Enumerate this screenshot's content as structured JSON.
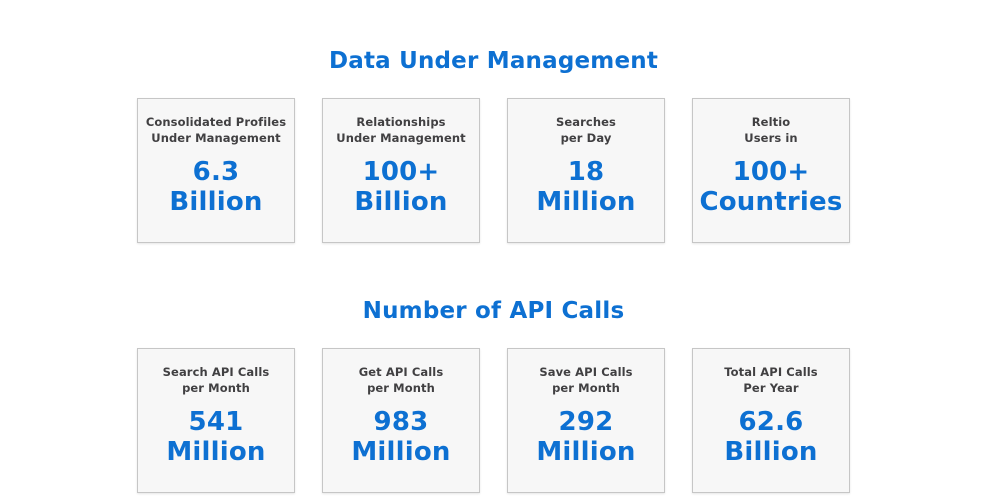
{
  "colors": {
    "accent_blue": "#0d70d2",
    "label_gray": "#414042",
    "card_background": "#f7f7f7",
    "card_border": "#c6c6c6",
    "page_background": "#ffffff"
  },
  "sections": [
    {
      "title": "Data Under Management",
      "cards": [
        {
          "label_line1": "Consolidated Profiles",
          "label_line2": "Under Management",
          "value_line1": "6.3",
          "value_line2": "Billion"
        },
        {
          "label_line1": "Relationships",
          "label_line2": "Under Management",
          "value_line1": "100+",
          "value_line2": "Billion"
        },
        {
          "label_line1": "Searches",
          "label_line2": "per Day",
          "value_line1": "18",
          "value_line2": "Million"
        },
        {
          "label_line1": "Reltio",
          "label_line2": "Users in",
          "value_line1": "100+",
          "value_line2": "Countries"
        }
      ]
    },
    {
      "title": "Number of API Calls",
      "cards": [
        {
          "label_line1": "Search API Calls",
          "label_line2": "per Month",
          "value_line1": "541",
          "value_line2": "Million"
        },
        {
          "label_line1": "Get API Calls",
          "label_line2": "per Month",
          "value_line1": "983",
          "value_line2": "Million"
        },
        {
          "label_line1": "Save API Calls",
          "label_line2": "per Month",
          "value_line1": "292",
          "value_line2": "Million"
        },
        {
          "label_line1": "Total API Calls",
          "label_line2": "Per Year",
          "value_line1": "62.6",
          "value_line2": "Billion"
        }
      ]
    }
  ],
  "chart_data": [
    {
      "type": "table",
      "title": "Data Under Management",
      "metrics": [
        {
          "label": "Consolidated Profiles Under Management",
          "value": 6.3,
          "unit": "Billion",
          "display": "6.3 Billion"
        },
        {
          "label": "Relationships Under Management",
          "value": "100+",
          "unit": "Billion",
          "display": "100+ Billion"
        },
        {
          "label": "Searches per Day",
          "value": 18,
          "unit": "Million",
          "display": "18 Million"
        },
        {
          "label": "Reltio Users in",
          "value": "100+",
          "unit": "Countries",
          "display": "100+ Countries"
        }
      ]
    },
    {
      "type": "table",
      "title": "Number of API Calls",
      "metrics": [
        {
          "label": "Search API Calls per Month",
          "value": 541,
          "unit": "Million",
          "display": "541 Million"
        },
        {
          "label": "Get API Calls per Month",
          "value": 983,
          "unit": "Million",
          "display": "983 Million"
        },
        {
          "label": "Save API Calls per Month",
          "value": 292,
          "unit": "Million",
          "display": "292 Million"
        },
        {
          "label": "Total API Calls Per Year",
          "value": 62.6,
          "unit": "Billion",
          "display": "62.6 Billion"
        }
      ]
    }
  ]
}
